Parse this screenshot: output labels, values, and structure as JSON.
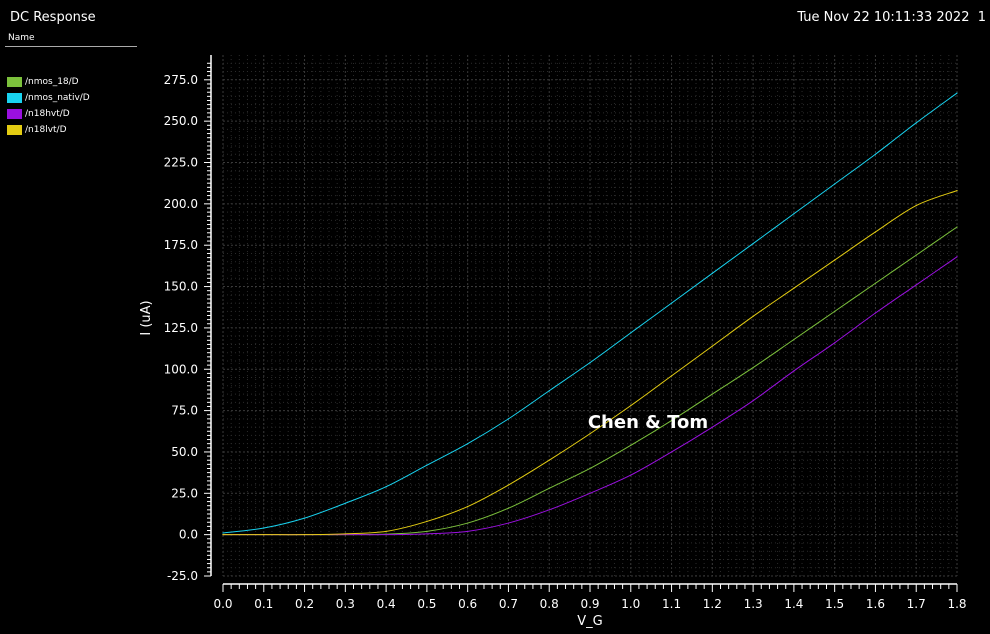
{
  "window": {
    "title": "DC Response",
    "datetime": "Tue Nov 22 10:11:33 2022  1",
    "name_header": "Name"
  },
  "legend": [
    {
      "label": "/nmos_18/D",
      "color": "#7cc13c"
    },
    {
      "label": "/nmos_nativ/D",
      "color": "#19d3f0"
    },
    {
      "label": "/n18hvt/D",
      "color": "#9a10e0"
    },
    {
      "label": "/n18lvt/D",
      "color": "#e3cc12"
    }
  ],
  "annotation": "Chen & Tom",
  "chart_data": {
    "type": "line",
    "xlabel": "V_G",
    "ylabel": "I (uA)",
    "xlim": [
      0.0,
      1.8
    ],
    "ylim": [
      -25.0,
      290.0
    ],
    "grid": true,
    "xticks": [
      "0.0",
      "0.1",
      "0.2",
      "0.3",
      "0.4",
      "0.5",
      "0.6",
      "0.7",
      "0.8",
      "0.9",
      "1.0",
      "1.1",
      "1.2",
      "1.3",
      "1.4",
      "1.5",
      "1.6",
      "1.7",
      "1.8"
    ],
    "yticks": [
      "-25.0",
      "0.0",
      "25.0",
      "50.0",
      "75.0",
      "100.0",
      "125.0",
      "150.0",
      "175.0",
      "200.0",
      "225.0",
      "250.0",
      "275.0"
    ],
    "x": [
      0.0,
      0.1,
      0.2,
      0.3,
      0.4,
      0.5,
      0.6,
      0.7,
      0.8,
      0.9,
      1.0,
      1.1,
      1.2,
      1.3,
      1.4,
      1.5,
      1.6,
      1.7,
      1.8
    ],
    "series": [
      {
        "name": "/nmos_18/D",
        "color": "#7cc13c",
        "values": [
          0,
          0,
          0,
          0,
          0.3,
          2,
          7,
          16,
          28,
          40,
          54,
          69,
          85,
          101,
          118,
          135,
          152,
          169,
          186
        ]
      },
      {
        "name": "/nmos_nativ/D",
        "color": "#19d3f0",
        "values": [
          1,
          4,
          10,
          19,
          29,
          42,
          55,
          70,
          87,
          104,
          122,
          140,
          158,
          176,
          194,
          212,
          230,
          249,
          267
        ]
      },
      {
        "name": "/n18hvt/D",
        "color": "#9a10e0",
        "values": [
          0,
          0,
          0,
          0,
          0,
          0.5,
          2,
          7,
          15,
          25,
          36,
          50,
          65,
          81,
          99,
          116,
          134,
          151,
          168
        ]
      },
      {
        "name": "/n18lvt/D",
        "color": "#e3cc12",
        "values": [
          0,
          0,
          0,
          0.5,
          2,
          8,
          17,
          30,
          45,
          61,
          78,
          96,
          114,
          132,
          149,
          166,
          183,
          199,
          208
        ]
      }
    ]
  }
}
